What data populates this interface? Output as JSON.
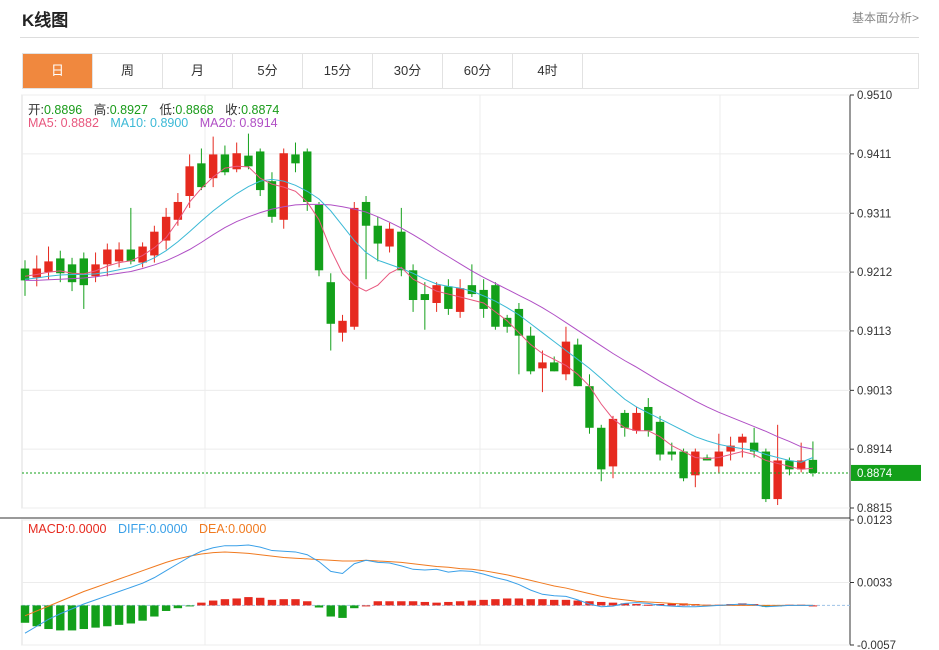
{
  "header": {
    "title": "K线图",
    "link": "基本面分析>"
  },
  "tabs": [
    "日",
    "周",
    "月",
    "5分",
    "15分",
    "30分",
    "60分",
    "4时"
  ],
  "active_tab": 0,
  "ohlc": {
    "open_label": "开:",
    "open": "0.8896",
    "high_label": "高:",
    "high": "0.8927",
    "low_label": "低:",
    "low": "0.8868",
    "close_label": "收:",
    "close": "0.8874"
  },
  "ma": {
    "ma5_label": "MA5:",
    "ma5": "0.8882",
    "ma10_label": "MA10:",
    "ma10": "0.8900",
    "ma20_label": "MA20:",
    "ma20": "0.8914"
  },
  "macd_info": {
    "macd_label": "MACD:",
    "macd": "0.0000",
    "diff_label": "DIFF:",
    "diff": "0.0000",
    "dea_label": "DEA:",
    "dea": "0.0000"
  },
  "colors": {
    "up": "#e62a1f",
    "down": "#13a01a",
    "ma5": "#e8577e",
    "ma10": "#3bb9d6",
    "ma20": "#b04fc5",
    "diff": "#3aa0e8",
    "dea": "#f07a20",
    "current": "#13a01a",
    "accent": "#f0883e"
  },
  "chart_data": {
    "type": "candlestick",
    "price_axis": {
      "min": 0.8815,
      "max": 0.951,
      "ticks": [
        "0.9510",
        "0.9411",
        "0.9311",
        "0.9212",
        "0.9113",
        "0.9013",
        "0.8914",
        "0.8815"
      ]
    },
    "macd_axis": {
      "min": -0.0057,
      "max": 0.0123,
      "ticks": [
        "0.0123",
        "0.0033",
        "-0.0057"
      ]
    },
    "current_price": "0.8874",
    "candles": [
      [
        0.9218,
        0.9198,
        0.9232,
        0.9172
      ],
      [
        0.9203,
        0.9218,
        0.924,
        0.9188
      ],
      [
        0.9212,
        0.923,
        0.9255,
        0.92
      ],
      [
        0.9235,
        0.921,
        0.9248,
        0.9195
      ],
      [
        0.9225,
        0.9195,
        0.9236,
        0.918
      ],
      [
        0.9235,
        0.919,
        0.9245,
        0.915
      ],
      [
        0.9205,
        0.9225,
        0.9245,
        0.9195
      ],
      [
        0.9225,
        0.925,
        0.926,
        0.9205
      ],
      [
        0.923,
        0.925,
        0.9262,
        0.922
      ],
      [
        0.925,
        0.923,
        0.932,
        0.9225
      ],
      [
        0.9228,
        0.9255,
        0.9262,
        0.922
      ],
      [
        0.924,
        0.928,
        0.929,
        0.9228
      ],
      [
        0.9265,
        0.9305,
        0.932,
        0.925
      ],
      [
        0.93,
        0.933,
        0.9345,
        0.929
      ],
      [
        0.934,
        0.939,
        0.941,
        0.932
      ],
      [
        0.9395,
        0.9355,
        0.942,
        0.935
      ],
      [
        0.937,
        0.941,
        0.944,
        0.9355
      ],
      [
        0.941,
        0.938,
        0.9425,
        0.9375
      ],
      [
        0.9385,
        0.9412,
        0.943,
        0.938
      ],
      [
        0.9408,
        0.939,
        0.9445,
        0.9385
      ],
      [
        0.9415,
        0.935,
        0.942,
        0.934
      ],
      [
        0.9365,
        0.9305,
        0.938,
        0.9295
      ],
      [
        0.93,
        0.9412,
        0.942,
        0.9285
      ],
      [
        0.941,
        0.9395,
        0.943,
        0.938
      ],
      [
        0.9415,
        0.933,
        0.942,
        0.9315
      ],
      [
        0.9325,
        0.9215,
        0.933,
        0.9205
      ],
      [
        0.9195,
        0.9125,
        0.921,
        0.908
      ],
      [
        0.911,
        0.913,
        0.914,
        0.9095
      ],
      [
        0.912,
        0.932,
        0.933,
        0.9115
      ],
      [
        0.933,
        0.929,
        0.934,
        0.92
      ],
      [
        0.929,
        0.926,
        0.9305,
        0.923
      ],
      [
        0.9255,
        0.9285,
        0.9295,
        0.9245
      ],
      [
        0.928,
        0.9215,
        0.932,
        0.9205
      ],
      [
        0.9215,
        0.9165,
        0.9225,
        0.9145
      ],
      [
        0.9175,
        0.9165,
        0.9195,
        0.9115
      ],
      [
        0.916,
        0.919,
        0.9195,
        0.9145
      ],
      [
        0.9188,
        0.915,
        0.92,
        0.914
      ],
      [
        0.9145,
        0.9185,
        0.92,
        0.9135
      ],
      [
        0.919,
        0.9175,
        0.9225,
        0.917
      ],
      [
        0.9182,
        0.915,
        0.92,
        0.9135
      ],
      [
        0.919,
        0.912,
        0.9195,
        0.9115
      ],
      [
        0.9135,
        0.912,
        0.914,
        0.911
      ],
      [
        0.915,
        0.9105,
        0.916,
        0.904
      ],
      [
        0.9105,
        0.9045,
        0.912,
        0.904
      ],
      [
        0.905,
        0.906,
        0.908,
        0.901
      ],
      [
        0.906,
        0.9045,
        0.907,
        0.9045
      ],
      [
        0.904,
        0.9095,
        0.912,
        0.903
      ],
      [
        0.909,
        0.902,
        0.91,
        0.902
      ],
      [
        0.902,
        0.895,
        0.904,
        0.894
      ],
      [
        0.895,
        0.888,
        0.8955,
        0.886
      ],
      [
        0.8885,
        0.8965,
        0.897,
        0.8865
      ],
      [
        0.8975,
        0.895,
        0.898,
        0.8935
      ],
      [
        0.8945,
        0.8975,
        0.8985,
        0.894
      ],
      [
        0.8985,
        0.8945,
        0.9,
        0.8935
      ],
      [
        0.896,
        0.8905,
        0.897,
        0.8895
      ],
      [
        0.891,
        0.8905,
        0.8925,
        0.8895
      ],
      [
        0.891,
        0.8865,
        0.8915,
        0.886
      ],
      [
        0.887,
        0.891,
        0.8915,
        0.885
      ],
      [
        0.89,
        0.8895,
        0.8905,
        0.8895
      ],
      [
        0.8885,
        0.891,
        0.894,
        0.8875
      ],
      [
        0.891,
        0.892,
        0.8935,
        0.8895
      ],
      [
        0.8925,
        0.8935,
        0.894,
        0.89
      ],
      [
        0.8925,
        0.891,
        0.895,
        0.89
      ],
      [
        0.891,
        0.883,
        0.8915,
        0.8825
      ],
      [
        0.883,
        0.8895,
        0.8955,
        0.882
      ],
      [
        0.8895,
        0.888,
        0.89,
        0.887
      ],
      [
        0.888,
        0.8895,
        0.8925,
        0.8875
      ],
      [
        0.8896,
        0.8874,
        0.8927,
        0.8868
      ]
    ],
    "ma5": [
      0.9205,
      0.9208,
      0.9212,
      0.9214,
      0.921,
      0.9209,
      0.9214,
      0.9222,
      0.9228,
      0.9231,
      0.924,
      0.9253,
      0.927,
      0.9298,
      0.933,
      0.9353,
      0.9372,
      0.9387,
      0.939,
      0.9389,
      0.937,
      0.936,
      0.9355,
      0.9348,
      0.933,
      0.93,
      0.925,
      0.921,
      0.919,
      0.918,
      0.919,
      0.921,
      0.922,
      0.92,
      0.919,
      0.918,
      0.9175,
      0.917,
      0.9165,
      0.916,
      0.9145,
      0.913,
      0.911,
      0.909,
      0.9075,
      0.9065,
      0.9055,
      0.904,
      0.902,
      0.899,
      0.8965,
      0.895,
      0.8945,
      0.8945,
      0.8935,
      0.892,
      0.891,
      0.89,
      0.8898,
      0.89,
      0.8905,
      0.891,
      0.8905,
      0.8895,
      0.889,
      0.8885,
      0.888,
      0.8882
    ],
    "ma10": [
      0.92,
      0.9202,
      0.9205,
      0.9207,
      0.9208,
      0.9208,
      0.9209,
      0.9212,
      0.9216,
      0.922,
      0.9227,
      0.9236,
      0.9248,
      0.9263,
      0.928,
      0.9298,
      0.9315,
      0.933,
      0.9344,
      0.9356,
      0.9365,
      0.9368,
      0.9365,
      0.9358,
      0.9348,
      0.9335,
      0.9315,
      0.929,
      0.9265,
      0.9245,
      0.9232,
      0.9225,
      0.9218,
      0.921,
      0.92,
      0.9192,
      0.9188,
      0.9185,
      0.918,
      0.9172,
      0.9163,
      0.9152,
      0.914,
      0.9125,
      0.911,
      0.9095,
      0.908,
      0.9065,
      0.905,
      0.9033,
      0.9015,
      0.8998,
      0.8985,
      0.8975,
      0.8965,
      0.8955,
      0.8945,
      0.8935,
      0.8928,
      0.8922,
      0.8918,
      0.8915,
      0.8912,
      0.8905,
      0.89,
      0.8895,
      0.8892,
      0.89
    ],
    "ma20": [
      0.9198,
      0.9198,
      0.9199,
      0.92,
      0.9201,
      0.9202,
      0.9204,
      0.9207,
      0.921,
      0.9213,
      0.9218,
      0.9224,
      0.9231,
      0.924,
      0.925,
      0.9262,
      0.9275,
      0.9287,
      0.9297,
      0.9305,
      0.9312,
      0.9318,
      0.9322,
      0.9325,
      0.9326,
      0.9326,
      0.9325,
      0.9322,
      0.9318,
      0.9313,
      0.9305,
      0.9296,
      0.9286,
      0.9275,
      0.9263,
      0.925,
      0.9238,
      0.9226,
      0.9214,
      0.9203,
      0.9193,
      0.9183,
      0.9173,
      0.9163,
      0.9152,
      0.914,
      0.9127,
      0.9114,
      0.9101,
      0.9088,
      0.9075,
      0.9063,
      0.9052,
      0.904,
      0.9028,
      0.9017,
      0.9006,
      0.8995,
      0.8985,
      0.8976,
      0.8968,
      0.896,
      0.8952,
      0.8944,
      0.8935,
      0.8927,
      0.8918,
      0.8914
    ],
    "diff": [
      -0.004,
      -0.003,
      -0.002,
      -0.0012,
      -0.0005,
      0.0002,
      0.0008,
      0.0014,
      0.002,
      0.0026,
      0.0032,
      0.004,
      0.005,
      0.006,
      0.007,
      0.0078,
      0.0083,
      0.0086,
      0.0086,
      0.0087,
      0.0084,
      0.0079,
      0.0078,
      0.0077,
      0.0073,
      0.0063,
      0.0049,
      0.0046,
      0.006,
      0.0065,
      0.0062,
      0.0061,
      0.0057,
      0.0052,
      0.0051,
      0.0052,
      0.0048,
      0.005,
      0.0049,
      0.0045,
      0.004,
      0.0036,
      0.003,
      0.0022,
      0.0016,
      0.0014,
      0.0013,
      0.0008,
      0.0002,
      -0.0002,
      -0.0001,
      0.0003,
      0.0004,
      0.0003,
      0.0,
      -0.0001,
      -0.0002,
      -0.0002,
      -0.0001,
      0.0,
      0.0001,
      0.0002,
      0.0001,
      -0.0002,
      -0.0001,
      0.0,
      0.0,
      0.0
    ],
    "dea": [
      -0.0015,
      -0.0008,
      -0.0001,
      0.0006,
      0.0013,
      0.002,
      0.0026,
      0.0032,
      0.0038,
      0.0044,
      0.005,
      0.0056,
      0.0062,
      0.0067,
      0.0071,
      0.0074,
      0.0076,
      0.0077,
      0.0076,
      0.0075,
      0.0073,
      0.0071,
      0.0069,
      0.0068,
      0.0067,
      0.0066,
      0.0065,
      0.0064,
      0.0064,
      0.0065,
      0.0064,
      0.0063,
      0.0062,
      0.006,
      0.0058,
      0.0056,
      0.0055,
      0.0053,
      0.0052,
      0.005,
      0.0047,
      0.0044,
      0.004,
      0.0036,
      0.0032,
      0.0028,
      0.0025,
      0.0021,
      0.0017,
      0.0013,
      0.001,
      0.0008,
      0.0006,
      0.0005,
      0.0004,
      0.0003,
      0.0002,
      0.0001,
      0.0,
      0.0,
      0.0,
      0.0,
      0.0,
      0.0,
      0.0,
      0.0,
      0.0,
      0.0
    ],
    "macd_hist": [
      -0.0025,
      -0.003,
      -0.0034,
      -0.0036,
      -0.0036,
      -0.0034,
      -0.0032,
      -0.003,
      -0.0028,
      -0.0026,
      -0.0022,
      -0.0016,
      -0.0008,
      -0.0004,
      -0.0001,
      0.0004,
      0.0007,
      0.0009,
      0.001,
      0.0012,
      0.0011,
      0.0008,
      0.0009,
      0.0009,
      0.0006,
      -0.0003,
      -0.0016,
      -0.0018,
      -0.0004,
      0.0,
      0.0006,
      0.0006,
      0.0006,
      0.0006,
      0.0005,
      0.0004,
      0.0005,
      0.0006,
      0.0007,
      0.0008,
      0.0009,
      0.001,
      0.001,
      0.0009,
      0.0009,
      0.0008,
      0.0008,
      0.0007,
      0.0006,
      0.0005,
      0.0004,
      0.0003,
      0.0002,
      0.0001,
      0.0002,
      0.0003,
      0.0003,
      0.0002,
      0.0001,
      0.0001,
      0.0002,
      0.0003,
      0.0002,
      -0.0002,
      -0.0001,
      0.0001,
      0.0001,
      0.0
    ]
  }
}
